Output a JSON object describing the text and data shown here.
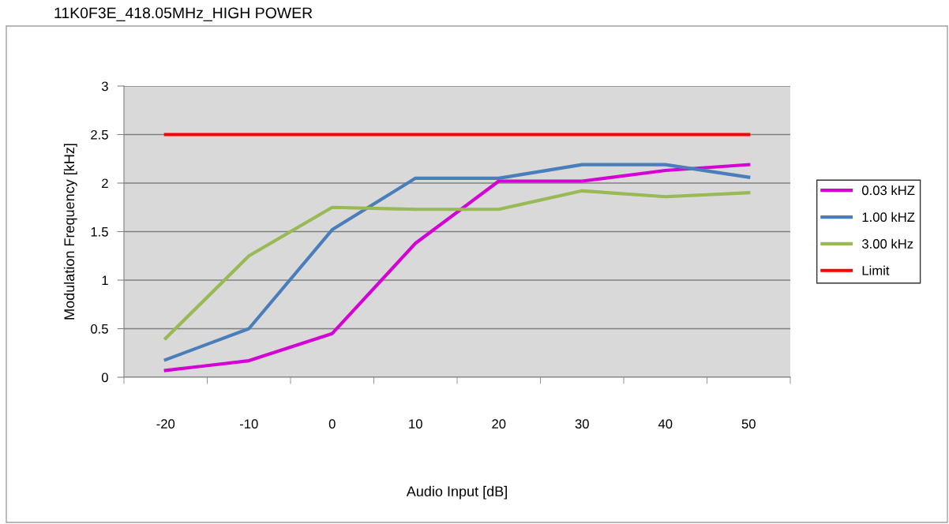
{
  "chart_data": {
    "type": "line",
    "title": "11K0F3E_418.05MHz_HIGH POWER",
    "xlabel": "Audio Input [dB]",
    "ylabel": "Modulation Frequency [kHz]",
    "categories": [
      "-20",
      "-10",
      "0",
      "10",
      "20",
      "30",
      "40",
      "50"
    ],
    "series": [
      {
        "name": "0.03 kHZ",
        "color": "#d400d4",
        "values": [
          0.07,
          0.17,
          0.45,
          1.38,
          2.02,
          2.02,
          2.13,
          2.19
        ]
      },
      {
        "name": "1.00 kHZ",
        "color": "#4a7ebb",
        "values": [
          0.18,
          0.5,
          1.52,
          2.05,
          2.05,
          2.19,
          2.19,
          2.06
        ]
      },
      {
        "name": "3.00 kHz",
        "color": "#98b954",
        "values": [
          0.4,
          1.25,
          1.75,
          1.73,
          1.73,
          1.92,
          1.86,
          1.9
        ]
      },
      {
        "name": "Limit",
        "color": "#ff0000",
        "values": [
          2.5,
          2.5,
          2.5,
          2.5,
          2.5,
          2.5,
          2.5,
          2.5
        ]
      }
    ],
    "ylim": [
      0,
      3
    ],
    "yticks": [
      0,
      0.5,
      1,
      1.5,
      2,
      2.5,
      3
    ],
    "grid": "y",
    "legend": "right",
    "marker": "none",
    "line_style": "solid"
  }
}
